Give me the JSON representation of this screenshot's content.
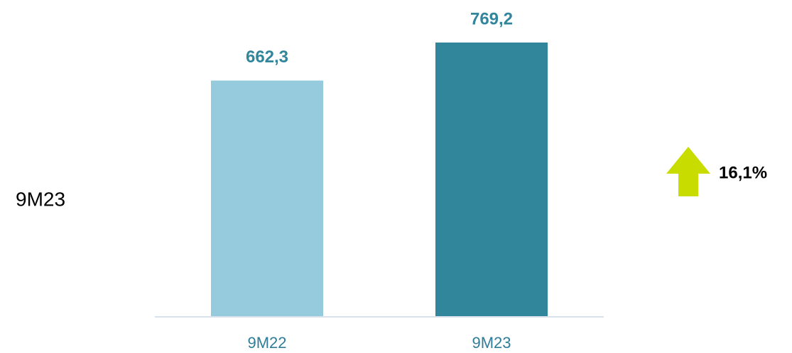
{
  "chart_data": {
    "type": "bar",
    "categories": [
      "9M22",
      "9M23"
    ],
    "values": [
      662.3,
      769.2
    ],
    "value_labels": [
      "662,3",
      "769,2"
    ],
    "colors": [
      "#96cbdd",
      "#31869b"
    ],
    "side_label": "9M23",
    "annotation": "16,1%"
  }
}
